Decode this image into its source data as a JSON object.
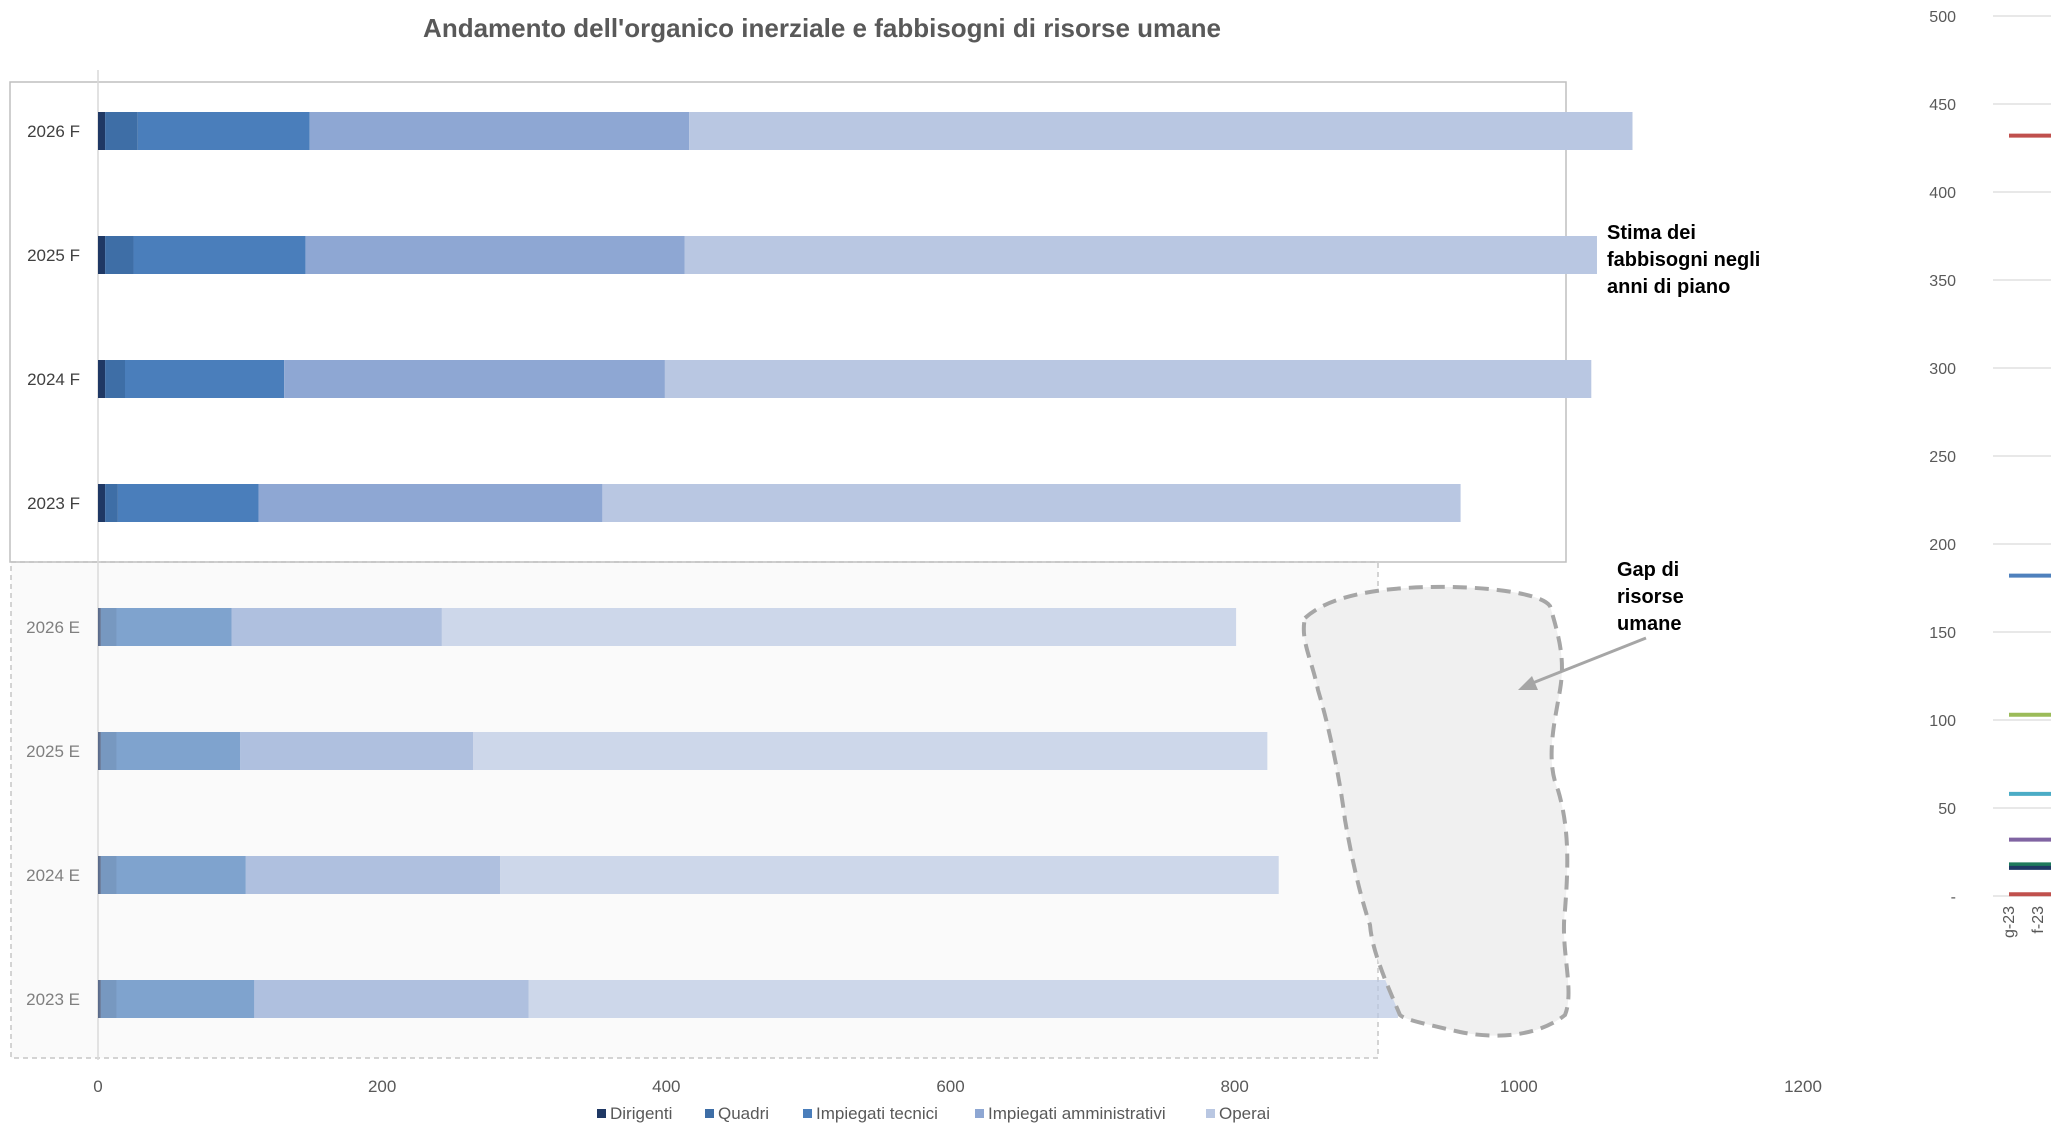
{
  "chart_data": [
    {
      "type": "bar",
      "orientation": "horizontal",
      "stacked": true,
      "title": "Andamento dell'organico inerziale e fabbisogni di risorse umane",
      "categories": [
        "2026 F",
        "2025 F",
        "2024 F",
        "2023 F",
        "2026 E",
        "2025 E",
        "2024 E",
        "2023 E"
      ],
      "series": [
        {
          "name": "Dirigenti",
          "color": "#1f3864",
          "values": [
            5,
            5,
            5,
            5,
            2,
            2,
            2,
            2
          ]
        },
        {
          "name": "Quadri",
          "color": "#3e6ea6",
          "values": [
            23,
            20,
            14,
            9,
            11,
            11,
            11,
            11
          ]
        },
        {
          "name": "Impiegati tecnici",
          "color": "#4a7ebb",
          "values": [
            121,
            121,
            112,
            99,
            81,
            87,
            91,
            97
          ]
        },
        {
          "name": "Impiegati amministrativi",
          "color": "#8ea7d3",
          "values": [
            267,
            267,
            268,
            242,
            148,
            164,
            179,
            193
          ]
        },
        {
          "name": "Operai",
          "color": "#b9c7e2",
          "values": [
            664,
            642,
            652,
            604,
            559,
            559,
            548,
            612
          ]
        }
      ],
      "xlim": [
        0,
        1200
      ],
      "xticks": [
        "0",
        "200",
        "400",
        "600",
        "800",
        "1000",
        "1200"
      ],
      "legend_position": "bottom",
      "annotations": [
        {
          "text": [
            "Stima dei",
            "fabbisogni negli",
            "anni di piano"
          ]
        },
        {
          "text": [
            "Gap di",
            "risorse",
            "umane"
          ]
        }
      ]
    },
    {
      "type": "line",
      "partially_visible": true,
      "ylim": [
        0,
        500
      ],
      "yticks": [
        "500",
        "450",
        "400",
        "350",
        "300",
        "250",
        "200",
        "150",
        "100",
        "50",
        "-"
      ],
      "xticks": [
        "g-23",
        "f-23"
      ],
      "series": [
        {
          "color": "#c0504d",
          "values": [
            432,
            432
          ]
        },
        {
          "color": "#4f81bd",
          "values": [
            182,
            182
          ]
        },
        {
          "color": "#9bbb59",
          "values": [
            103,
            103
          ]
        },
        {
          "color": "#4bacc6",
          "values": [
            58,
            58
          ]
        },
        {
          "color": "#8064a2",
          "values": [
            32,
            32
          ]
        },
        {
          "color": "#1f7a5c",
          "values": [
            18,
            18
          ]
        },
        {
          "color": "#1f3864",
          "values": [
            16,
            16
          ]
        },
        {
          "color": "#c0504d",
          "values": [
            1,
            1
          ]
        }
      ]
    }
  ]
}
